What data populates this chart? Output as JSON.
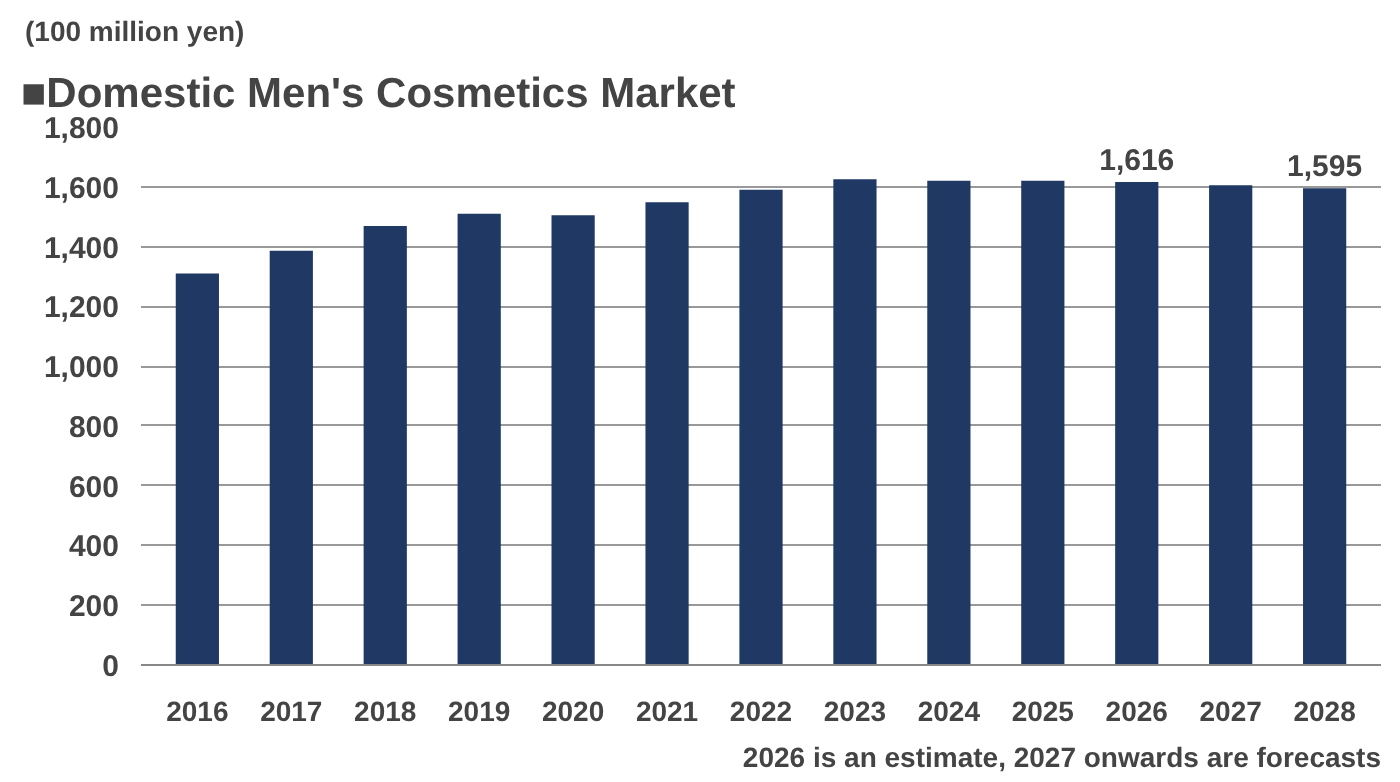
{
  "chart_data": {
    "type": "bar",
    "title": "■Domestic Men's Cosmetics Market",
    "ylabel": "(100 million yen)",
    "categories": [
      "2016",
      "2017",
      "2018",
      "2019",
      "2020",
      "2021",
      "2022",
      "2023",
      "2024",
      "2025",
      "2026",
      "2027",
      "2028"
    ],
    "values": [
      1310,
      1386,
      1469,
      1510,
      1505,
      1548,
      1590,
      1625,
      1620,
      1620,
      1616,
      1605,
      1595
    ],
    "value_labels": [
      null,
      null,
      null,
      null,
      null,
      null,
      null,
      null,
      null,
      null,
      "1,616",
      null,
      "1,595"
    ],
    "color": "#203864",
    "ylim": [
      0,
      1800
    ],
    "yticks": [
      {
        "value": 0,
        "label": "0"
      },
      {
        "value": 200,
        "label": "200"
      },
      {
        "value": 400,
        "label": "400"
      },
      {
        "value": 600,
        "label": "600"
      },
      {
        "value": 800,
        "label": "800"
      },
      {
        "value": 1000,
        "label": "1,000"
      },
      {
        "value": 1200,
        "label": "1,200"
      },
      {
        "value": 1400,
        "label": "1,400"
      },
      {
        "value": 1600,
        "label": "1,600"
      },
      {
        "value": 1800,
        "label": "1,800"
      }
    ],
    "grid": "y",
    "annotations": [
      "2026 is an estimate, 2027 onwards are forecasts"
    ]
  }
}
